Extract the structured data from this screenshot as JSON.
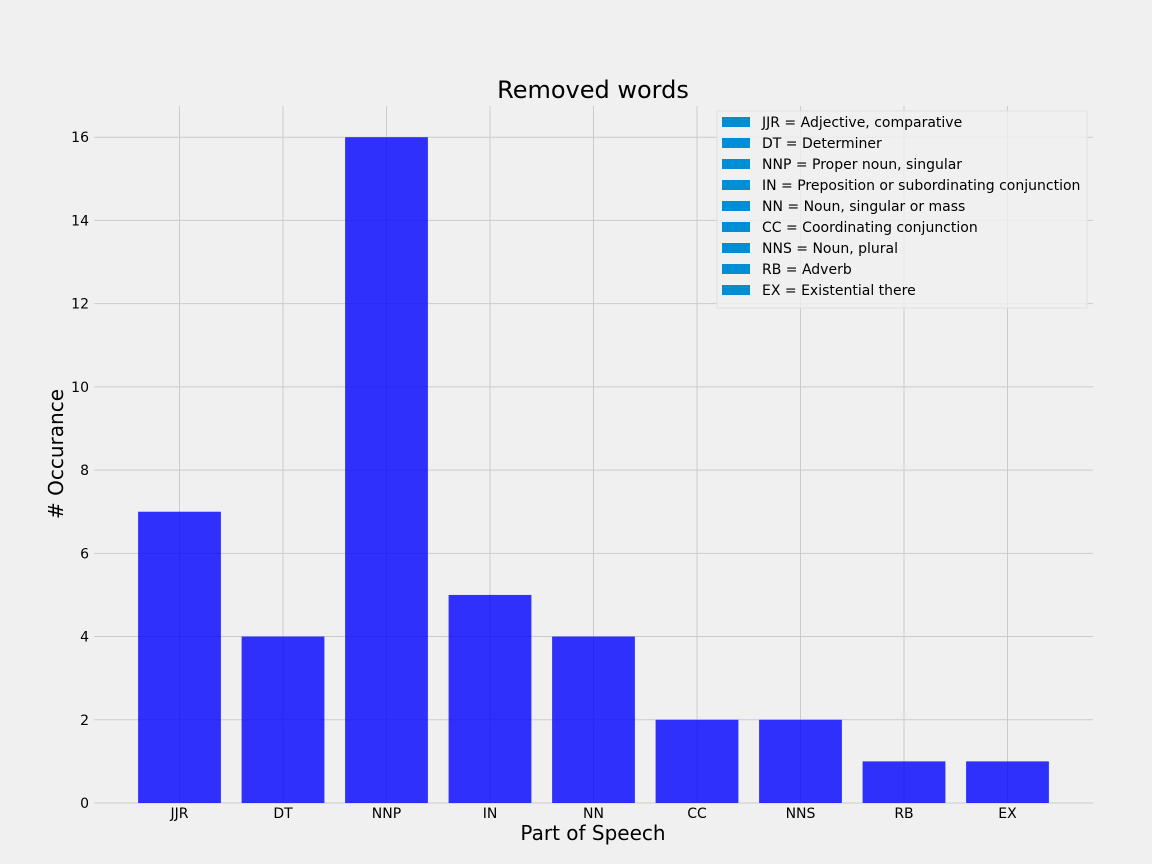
{
  "chart_data": {
    "type": "bar",
    "title": "Removed words",
    "xlabel": "Part of Speech",
    "ylabel": "# Occurance",
    "categories": [
      "JJR",
      "DT",
      "NNP",
      "IN",
      "NN",
      "CC",
      "NNS",
      "RB",
      "EX"
    ],
    "values": [
      7,
      4,
      16,
      5,
      4,
      2,
      2,
      1,
      1
    ],
    "ylim": [
      0,
      16.75
    ],
    "yticks": [
      0,
      2,
      4,
      6,
      8,
      10,
      12,
      14,
      16
    ],
    "grid": true,
    "bar_color": "#0000ff",
    "bar_alpha": 0.8,
    "legend_color": "#008fd5",
    "background_color": "#f0f0f0",
    "grid_color": "#cbcbcb",
    "legend": {
      "placement": "top-right",
      "entries": [
        "JJR = Adjective, comparative",
        "DT = Determiner",
        "NNP = Proper noun, singular",
        "IN = Preposition or subordinating conjunction",
        "NN = Noun, singular or mass",
        "CC = Coordinating conjunction",
        "NNS = Noun, plural",
        "RB = Adverb",
        "EX = Existential there"
      ]
    }
  }
}
